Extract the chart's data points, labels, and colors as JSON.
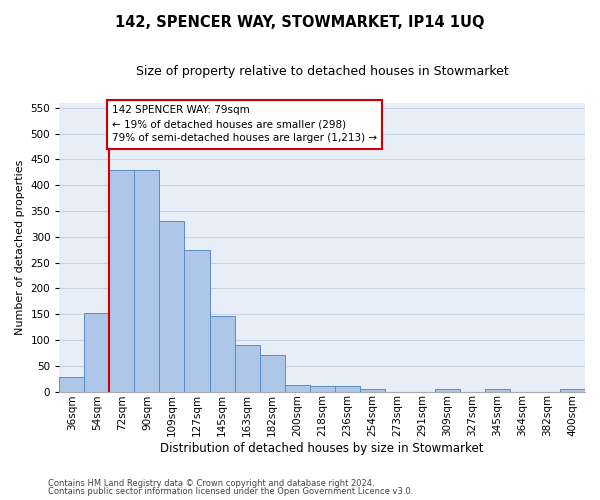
{
  "title": "142, SPENCER WAY, STOWMARKET, IP14 1UQ",
  "subtitle": "Size of property relative to detached houses in Stowmarket",
  "xlabel": "Distribution of detached houses by size in Stowmarket",
  "ylabel": "Number of detached properties",
  "footnote1": "Contains HM Land Registry data © Crown copyright and database right 2024.",
  "footnote2": "Contains public sector information licensed under the Open Government Licence v3.0.",
  "bar_labels": [
    "36sqm",
    "54sqm",
    "72sqm",
    "90sqm",
    "109sqm",
    "127sqm",
    "145sqm",
    "163sqm",
    "182sqm",
    "200sqm",
    "218sqm",
    "236sqm",
    "254sqm",
    "273sqm",
    "291sqm",
    "309sqm",
    "327sqm",
    "345sqm",
    "364sqm",
    "382sqm",
    "400sqm"
  ],
  "bar_values": [
    28,
    153,
    430,
    430,
    330,
    275,
    147,
    90,
    70,
    13,
    10,
    10,
    5,
    0,
    0,
    5,
    0,
    5,
    0,
    0,
    5
  ],
  "bar_color": "#aec6e8",
  "bar_edge_color": "#5b8cc8",
  "grid_color": "#c8d4e4",
  "background_color": "#e8eef8",
  "red_line_color": "#cc0000",
  "red_line_x": 2.0,
  "annotation_text": "142 SPENCER WAY: 79sqm\n← 19% of detached houses are smaller (298)\n79% of semi-detached houses are larger (1,213) →",
  "annotation_box_color": "#cc0000",
  "ylim": [
    0,
    560
  ],
  "yticks": [
    0,
    50,
    100,
    150,
    200,
    250,
    300,
    350,
    400,
    450,
    500,
    550
  ],
  "title_fontsize": 10.5,
  "subtitle_fontsize": 9,
  "axis_label_fontsize": 8.5,
  "tick_fontsize": 7.5,
  "annotation_fontsize": 7.5,
  "ylabel_fontsize": 8
}
